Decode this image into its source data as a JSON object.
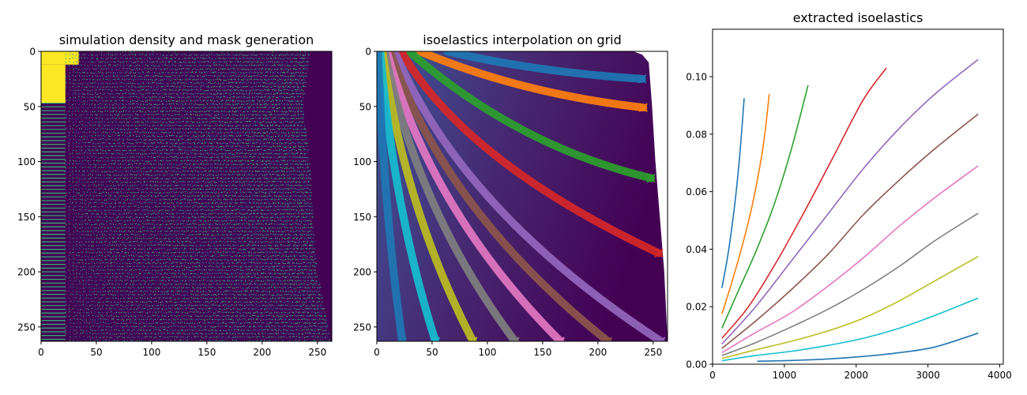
{
  "chart_data": [
    {
      "type": "heatmap",
      "title": "simulation density and mask generation",
      "xlabel": "",
      "ylabel": "",
      "xlim": [
        0,
        263
      ],
      "ylim": [
        263,
        0
      ],
      "xticks": [
        0,
        50,
        100,
        150,
        200,
        250
      ],
      "yticks": [
        0,
        50,
        100,
        150,
        200,
        250
      ],
      "colormap": "viridis",
      "description_values": {
        "mask_outer_edge_x": [
          [
            0,
            243
          ],
          [
            50,
            237
          ],
          [
            100,
            243
          ],
          [
            150,
            246
          ],
          [
            200,
            250
          ],
          [
            263,
            262
          ]
        ],
        "solid_region_edge_x": [
          [
            0,
            20
          ],
          [
            12,
            34
          ],
          [
            50,
            22
          ],
          [
            263,
            22
          ]
        ]
      }
    },
    {
      "type": "heatmap",
      "title": "isoelastics interpolation on grid",
      "xlabel": "",
      "ylabel": "",
      "xlim": [
        0,
        263
      ],
      "ylim": [
        263,
        0
      ],
      "xticks": [
        0,
        50,
        100,
        150,
        200,
        250
      ],
      "yticks": [
        0,
        50,
        100,
        150,
        200,
        250
      ],
      "colormap": "viridis",
      "grid_edge": [
        [
          0,
          232
        ],
        [
          3,
          240
        ],
        [
          10,
          246
        ],
        [
          50,
          249
        ],
        [
          100,
          252
        ],
        [
          150,
          256
        ],
        [
          200,
          260
        ],
        [
          263,
          263
        ]
      ],
      "series": [
        {
          "color": "#1f77b4",
          "start": [
            64,
            0
          ],
          "end": [
            240,
            25
          ]
        },
        {
          "color": "#ff7f0e",
          "start": [
            39,
            0
          ],
          "end": [
            241,
            51
          ]
        },
        {
          "color": "#2ca02c",
          "start": [
            29,
            0
          ],
          "end": [
            248,
            115
          ]
        },
        {
          "color": "#d62728",
          "start": [
            22,
            0
          ],
          "end": [
            255,
            183
          ]
        },
        {
          "color": "#9467bd",
          "start": [
            16,
            0
          ],
          "end": [
            257,
            263
          ]
        },
        {
          "color": "#8c564b",
          "start": [
            12,
            0
          ],
          "end": [
            209,
            263
          ]
        },
        {
          "color": "#e377c2",
          "start": [
            9,
            0
          ],
          "end": [
            166,
            263
          ]
        },
        {
          "color": "#7f7f7f",
          "start": [
            7,
            0
          ],
          "end": [
            125,
            263
          ]
        },
        {
          "color": "#bcbd22",
          "start": [
            5,
            0
          ],
          "end": [
            87,
            263
          ]
        },
        {
          "color": "#17becf",
          "start": [
            3,
            0
          ],
          "end": [
            53,
            263
          ]
        },
        {
          "color": "#1f77b4",
          "start": [
            1,
            0
          ],
          "end": [
            23,
            263
          ]
        }
      ]
    },
    {
      "type": "line",
      "title": "extracted isoelastics",
      "xlabel": "",
      "ylabel": "",
      "xlim": [
        0,
        4050
      ],
      "ylim": [
        0,
        0.1165
      ],
      "xticks": [
        0,
        1000,
        2000,
        3000,
        4000
      ],
      "yticks": [
        0.0,
        0.02,
        0.04,
        0.06,
        0.08,
        0.1
      ],
      "ytick_labels": [
        "0.00",
        "0.02",
        "0.04",
        "0.06",
        "0.08",
        "0.10"
      ],
      "grid": false,
      "series": [
        {
          "color": "#1f77b4",
          "x": [
            130,
            200,
            260,
            320,
            380,
            440
          ],
          "y": [
            0.0265,
            0.036,
            0.046,
            0.058,
            0.073,
            0.0925
          ]
        },
        {
          "color": "#ff7f0e",
          "x": [
            130,
            250,
            400,
            550,
            700,
            790
          ],
          "y": [
            0.0175,
            0.027,
            0.04,
            0.055,
            0.075,
            0.094
          ]
        },
        {
          "color": "#2ca02c",
          "x": [
            130,
            350,
            600,
            850,
            1100,
            1330
          ],
          "y": [
            0.0125,
            0.025,
            0.039,
            0.055,
            0.075,
            0.097
          ]
        },
        {
          "color": "#d62728",
          "x": [
            130,
            500,
            900,
            1300,
            1700,
            2100,
            2420
          ],
          "y": [
            0.009,
            0.02,
            0.036,
            0.054,
            0.073,
            0.092,
            0.103
          ]
        },
        {
          "color": "#9467bd",
          "x": [
            130,
            600,
            1100,
            1600,
            2100,
            2600,
            3100,
            3700
          ],
          "y": [
            0.007,
            0.02,
            0.036,
            0.052,
            0.068,
            0.082,
            0.094,
            0.106
          ]
        },
        {
          "color": "#8c564b",
          "x": [
            130,
            600,
            1100,
            1600,
            2100,
            2600,
            3100,
            3700
          ],
          "y": [
            0.0055,
            0.015,
            0.026,
            0.038,
            0.052,
            0.064,
            0.075,
            0.087
          ]
        },
        {
          "color": "#e377c2",
          "x": [
            130,
            600,
            1100,
            1600,
            2100,
            2600,
            3100,
            3700
          ],
          "y": [
            0.004,
            0.011,
            0.018,
            0.027,
            0.037,
            0.048,
            0.058,
            0.069
          ]
        },
        {
          "color": "#7f7f7f",
          "x": [
            130,
            600,
            1100,
            1600,
            2100,
            2600,
            3100,
            3700
          ],
          "y": [
            0.003,
            0.0075,
            0.013,
            0.019,
            0.026,
            0.034,
            0.043,
            0.0525
          ]
        },
        {
          "color": "#bcbd22",
          "x": [
            130,
            600,
            1100,
            1600,
            2100,
            2600,
            3100,
            3700
          ],
          "y": [
            0.002,
            0.005,
            0.008,
            0.0115,
            0.016,
            0.022,
            0.029,
            0.0375
          ]
        },
        {
          "color": "#17becf",
          "x": [
            130,
            600,
            1100,
            1600,
            2100,
            2600,
            3100,
            3700
          ],
          "y": [
            0.0012,
            0.003,
            0.0045,
            0.0065,
            0.009,
            0.0125,
            0.017,
            0.023
          ]
        },
        {
          "color": "#1f77b4",
          "x": [
            620,
            1100,
            1600,
            2100,
            2600,
            3100,
            3700
          ],
          "y": [
            0.001,
            0.0013,
            0.0018,
            0.0027,
            0.004,
            0.006,
            0.0108
          ]
        }
      ]
    }
  ]
}
